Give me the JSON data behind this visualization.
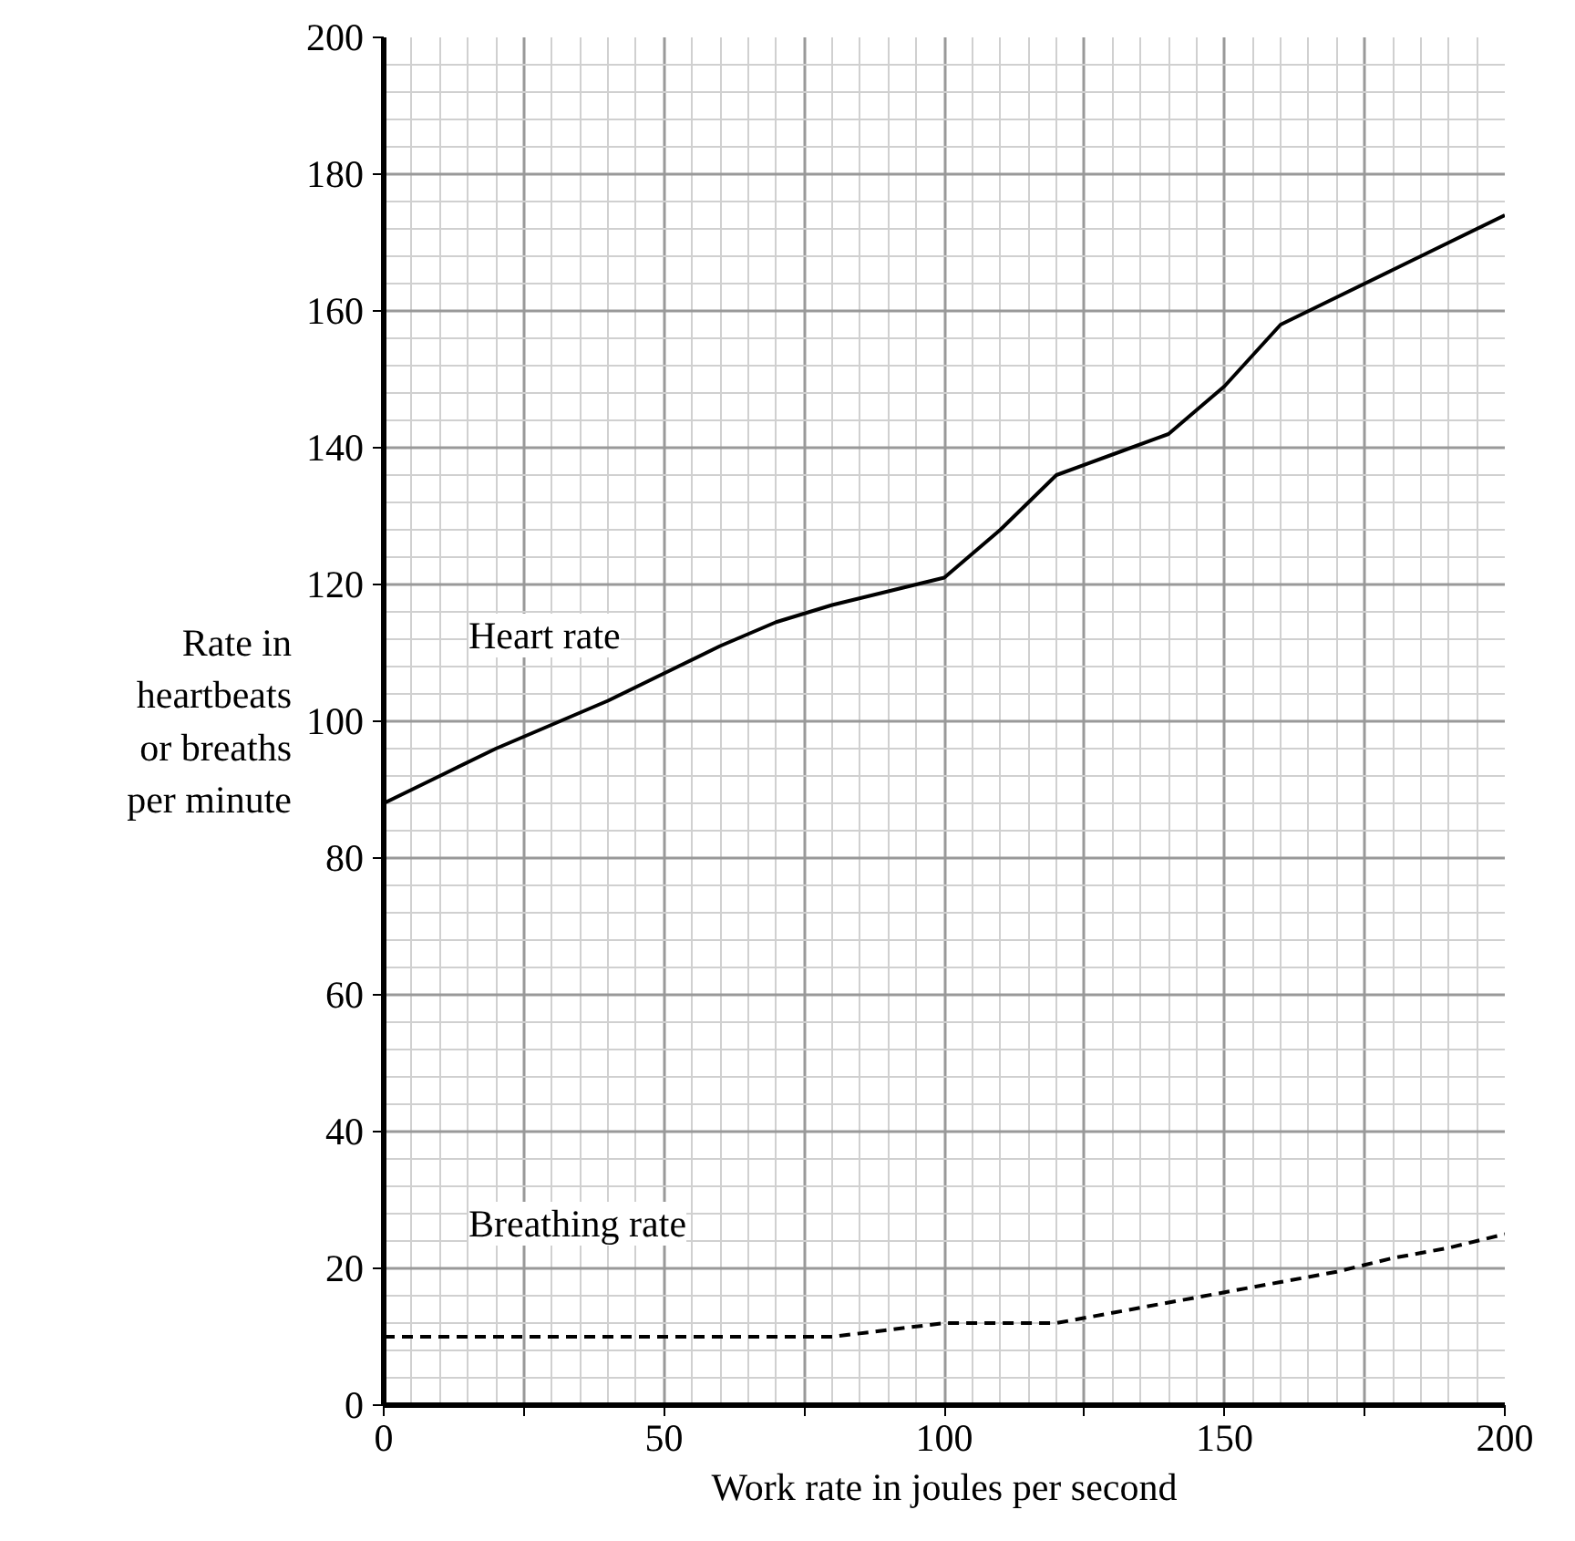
{
  "chart_data": {
    "type": "line",
    "xlabel": "Work rate in joules per second",
    "ylabel": "Rate in\nheartbeats\nor breaths\nper minute",
    "x": [
      0,
      10,
      20,
      30,
      40,
      50,
      60,
      70,
      80,
      90,
      100,
      110,
      120,
      130,
      140,
      150,
      160,
      170,
      180,
      190,
      200
    ],
    "series": [
      {
        "name": "Heart rate",
        "color": "#000000",
        "line_style": "solid",
        "values": [
          88,
          92,
          96,
          99.5,
          103,
          107,
          111,
          114.5,
          117,
          119,
          121,
          128,
          136,
          139,
          142,
          149,
          158,
          162,
          166,
          170,
          174
        ]
      },
      {
        "name": "Breathing rate",
        "color": "#000000",
        "line_style": "dashed",
        "values": [
          10,
          10,
          10,
          10,
          10,
          10,
          10,
          10,
          10,
          11,
          12,
          12,
          12,
          13.5,
          15,
          16.5,
          18,
          19.5,
          21.5,
          23,
          25
        ]
      }
    ],
    "xlim": [
      0,
      200
    ],
    "ylim": [
      0,
      200
    ],
    "xticks": [
      0,
      {
        "value": 25,
        "label": null
      },
      50,
      {
        "value": 75,
        "label": null
      },
      100,
      {
        "value": 125,
        "label": null
      },
      150,
      {
        "value": 175,
        "label": null
      },
      200
    ],
    "yticks": [
      0,
      20,
      40,
      60,
      80,
      100,
      120,
      140,
      160,
      180,
      200
    ],
    "grid": true,
    "legend": false
  }
}
